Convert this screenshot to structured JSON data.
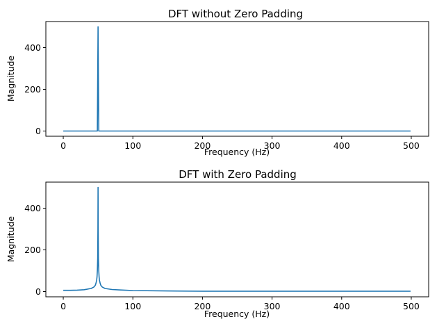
{
  "chart_data": [
    {
      "type": "line",
      "title": "DFT without Zero Padding",
      "xlabel": "Frequency (Hz)",
      "ylabel": "Magnitude",
      "xlim": [
        -25,
        525
      ],
      "ylim": [
        -25,
        525
      ],
      "xticks": [
        0,
        100,
        200,
        300,
        400,
        500
      ],
      "yticks": [
        0,
        200,
        400
      ],
      "grid": false,
      "series_color": "#1f77b4",
      "series": [
        {
          "x": [
            0,
            48,
            49,
            50,
            51,
            52,
            100,
            200,
            300,
            400,
            499
          ],
          "values": [
            0,
            0,
            0,
            500,
            0,
            0,
            0,
            0,
            0,
            0,
            0
          ]
        }
      ]
    },
    {
      "type": "line",
      "title": "DFT with Zero Padding",
      "xlabel": "Frequency (Hz)",
      "ylabel": "Magnitude",
      "xlim": [
        -25,
        525
      ],
      "ylim": [
        -25,
        525
      ],
      "xticks": [
        0,
        100,
        200,
        300,
        400,
        500
      ],
      "yticks": [
        0,
        200,
        400
      ],
      "grid": false,
      "series_color": "#1f77b4",
      "series": [
        {
          "x": [
            0,
            10,
            20,
            30,
            40,
            44,
            46,
            47,
            48,
            48.5,
            49,
            49.5,
            49.8,
            50,
            50.2,
            50.5,
            51,
            51.5,
            52,
            53,
            54,
            56,
            60,
            70,
            80,
            100,
            150,
            200,
            300,
            400,
            499
          ],
          "values": [
            6,
            6,
            7,
            9,
            15,
            22,
            30,
            40,
            55,
            70,
            100,
            160,
            300,
            500,
            300,
            160,
            100,
            70,
            55,
            40,
            30,
            22,
            15,
            10,
            8,
            5,
            3,
            2,
            2,
            2,
            2
          ]
        }
      ]
    }
  ]
}
